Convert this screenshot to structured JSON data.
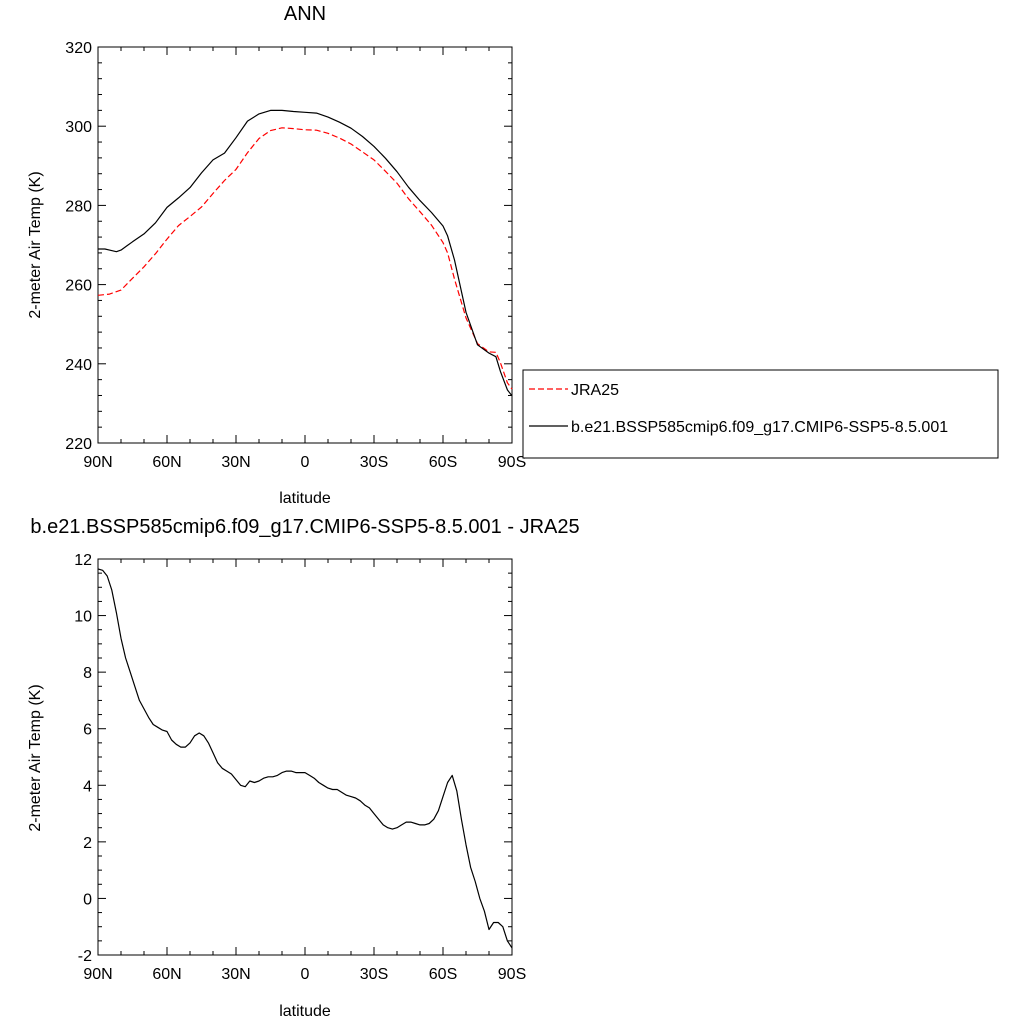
{
  "chart_data": [
    {
      "type": "line",
      "title": "ANN",
      "xlabel": "latitude",
      "ylabel": "2-meter Air Temp (K)",
      "xlim": [
        90,
        -90
      ],
      "ylim": [
        220,
        320
      ],
      "x_ticks": [
        90,
        60,
        30,
        0,
        -30,
        -60,
        -90
      ],
      "x_tick_labels": [
        "90N",
        "60N",
        "30N",
        "0",
        "30S",
        "60S",
        "90S"
      ],
      "y_ticks": [
        220,
        240,
        260,
        280,
        300,
        320
      ],
      "y_tick_labels": [
        "220",
        "240",
        "260",
        "280",
        "300",
        "320"
      ],
      "y_minor_step": 4,
      "x_minor_step": 10,
      "legend_position": "right",
      "grid": false,
      "series": [
        {
          "name": "JRA25",
          "color": "#ff0000",
          "style": "dashed",
          "x": [
            90,
            85,
            80,
            75,
            70,
            65,
            60,
            55,
            50,
            45,
            40,
            35,
            30,
            25,
            20,
            15,
            10,
            5,
            0,
            -5,
            -10,
            -15,
            -20,
            -25,
            -30,
            -35,
            -40,
            -45,
            -50,
            -55,
            -60,
            -62,
            -65,
            -70,
            -75,
            -80,
            -83,
            -85,
            -88,
            -90
          ],
          "values": [
            257.3,
            257.6,
            258.6,
            261.6,
            264.5,
            267.8,
            271.5,
            274.9,
            277.2,
            279.6,
            283.0,
            286.3,
            289.1,
            293.3,
            296.9,
            298.9,
            299.6,
            299.4,
            299.1,
            299.0,
            298.2,
            297.0,
            295.5,
            293.5,
            291.5,
            288.6,
            285.6,
            281.7,
            278.4,
            275.0,
            270.6,
            268.0,
            261.4,
            251.6,
            245.1,
            243.0,
            242.9,
            240.2,
            235.2,
            233.6
          ]
        },
        {
          "name": "b.e21.BSSP585cmip6.f09_g17.CMIP6-SSP5-8.5.001",
          "color": "#000000",
          "style": "solid",
          "x": [
            90,
            87,
            85,
            82,
            80,
            75,
            70,
            65,
            60,
            55,
            50,
            45,
            40,
            35,
            30,
            25,
            20,
            15,
            10,
            5,
            0,
            -5,
            -10,
            -15,
            -20,
            -25,
            -30,
            -35,
            -40,
            -45,
            -50,
            -55,
            -60,
            -62,
            -65,
            -70,
            -75,
            -80,
            -83,
            -85,
            -88,
            -90
          ],
          "values": [
            269.0,
            269.0,
            268.7,
            268.3,
            268.7,
            270.8,
            272.8,
            275.6,
            279.5,
            281.9,
            284.5,
            288.2,
            291.5,
            293.2,
            297.1,
            301.3,
            303.1,
            304.0,
            304.0,
            303.7,
            303.5,
            303.3,
            302.3,
            301.0,
            299.5,
            297.4,
            294.9,
            291.9,
            288.5,
            284.6,
            281.2,
            278.2,
            274.8,
            272.3,
            266.2,
            253.0,
            244.8,
            242.7,
            241.8,
            238.0,
            233.4,
            231.9
          ]
        }
      ]
    },
    {
      "type": "line",
      "title": "b.e21.BSSP585cmip6.f09_g17.CMIP6-SSP5-8.5.001 - JRA25",
      "xlabel": "latitude",
      "ylabel": "2-meter Air Temp (K)",
      "xlim": [
        90,
        -90
      ],
      "ylim": [
        -2,
        12
      ],
      "x_ticks": [
        90,
        60,
        30,
        0,
        -30,
        -60,
        -90
      ],
      "x_tick_labels": [
        "90N",
        "60N",
        "30N",
        "0",
        "30S",
        "60S",
        "90S"
      ],
      "y_ticks": [
        -2,
        0,
        2,
        4,
        6,
        8,
        10,
        12
      ],
      "y_tick_labels": [
        "-2",
        "0",
        "2",
        "4",
        "6",
        "8",
        "10",
        "12"
      ],
      "y_minor_step": 0.5,
      "x_minor_step": 10,
      "grid": false,
      "series": [
        {
          "color": "#000000",
          "style": "solid",
          "x": [
            90,
            88,
            86,
            84,
            82,
            80,
            78,
            76,
            74,
            72,
            70,
            68,
            66,
            64,
            62,
            60,
            58,
            56,
            54,
            52,
            50,
            48,
            46,
            44,
            42,
            40,
            38,
            36,
            34,
            32,
            30,
            28,
            26,
            24,
            22,
            20,
            18,
            16,
            14,
            12,
            10,
            8,
            6,
            4,
            2,
            0,
            -2,
            -4,
            -6,
            -8,
            -10,
            -12,
            -14,
            -16,
            -18,
            -20,
            -22,
            -24,
            -26,
            -28,
            -30,
            -32,
            -34,
            -36,
            -38,
            -40,
            -42,
            -44,
            -46,
            -48,
            -50,
            -52,
            -54,
            -56,
            -58,
            -60,
            -62,
            -64,
            -66,
            -68,
            -70,
            -72,
            -74,
            -76,
            -78,
            -80,
            -82,
            -84,
            -86,
            -88,
            -90
          ],
          "values": [
            11.65,
            11.6,
            11.4,
            10.9,
            10.1,
            9.2,
            8.5,
            8.0,
            7.5,
            7.0,
            6.7,
            6.4,
            6.15,
            6.05,
            5.95,
            5.9,
            5.6,
            5.45,
            5.35,
            5.35,
            5.5,
            5.75,
            5.85,
            5.75,
            5.5,
            5.15,
            4.8,
            4.6,
            4.5,
            4.4,
            4.2,
            4.0,
            3.95,
            4.15,
            4.1,
            4.15,
            4.25,
            4.3,
            4.3,
            4.35,
            4.45,
            4.5,
            4.5,
            4.45,
            4.45,
            4.45,
            4.35,
            4.25,
            4.1,
            4.0,
            3.9,
            3.85,
            3.85,
            3.75,
            3.65,
            3.6,
            3.55,
            3.45,
            3.3,
            3.2,
            3.0,
            2.8,
            2.6,
            2.5,
            2.45,
            2.5,
            2.6,
            2.7,
            2.7,
            2.65,
            2.6,
            2.6,
            2.65,
            2.8,
            3.1,
            3.6,
            4.1,
            4.35,
            3.8,
            2.8,
            1.9,
            1.1,
            0.6,
            0.0,
            -0.45,
            -1.1,
            -0.85,
            -0.85,
            -1.0,
            -1.5,
            -1.75
          ]
        }
      ]
    }
  ]
}
